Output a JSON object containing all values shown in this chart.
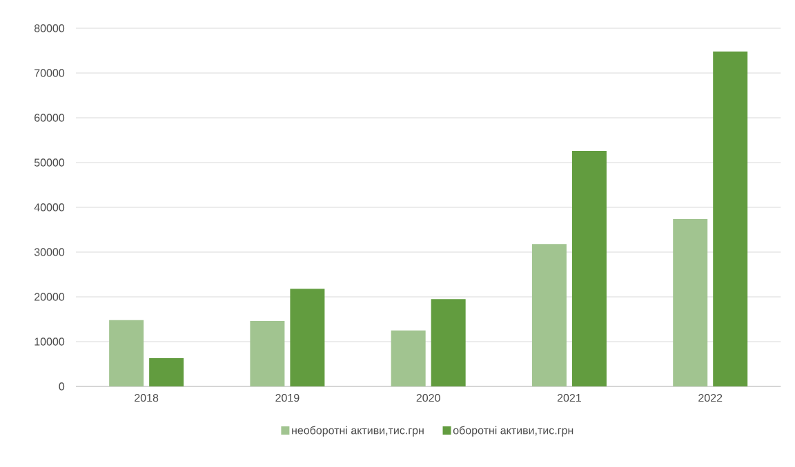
{
  "chart_data": {
    "type": "bar",
    "categories": [
      "2018",
      "2019",
      "2020",
      "2021",
      "2022"
    ],
    "series": [
      {
        "name": "необоротні активи,тис.грн",
        "color": "#a1c490",
        "values": [
          14800,
          14600,
          12500,
          31800,
          37400
        ]
      },
      {
        "name": "оборотні активи,тис.грн",
        "color": "#629c3f",
        "values": [
          6300,
          21800,
          19500,
          52600,
          74800
        ]
      }
    ],
    "ylim": [
      0,
      80000
    ],
    "yticks": [
      0,
      10000,
      20000,
      30000,
      40000,
      50000,
      60000,
      70000,
      80000
    ],
    "grid": "y",
    "legend": "bottom"
  }
}
